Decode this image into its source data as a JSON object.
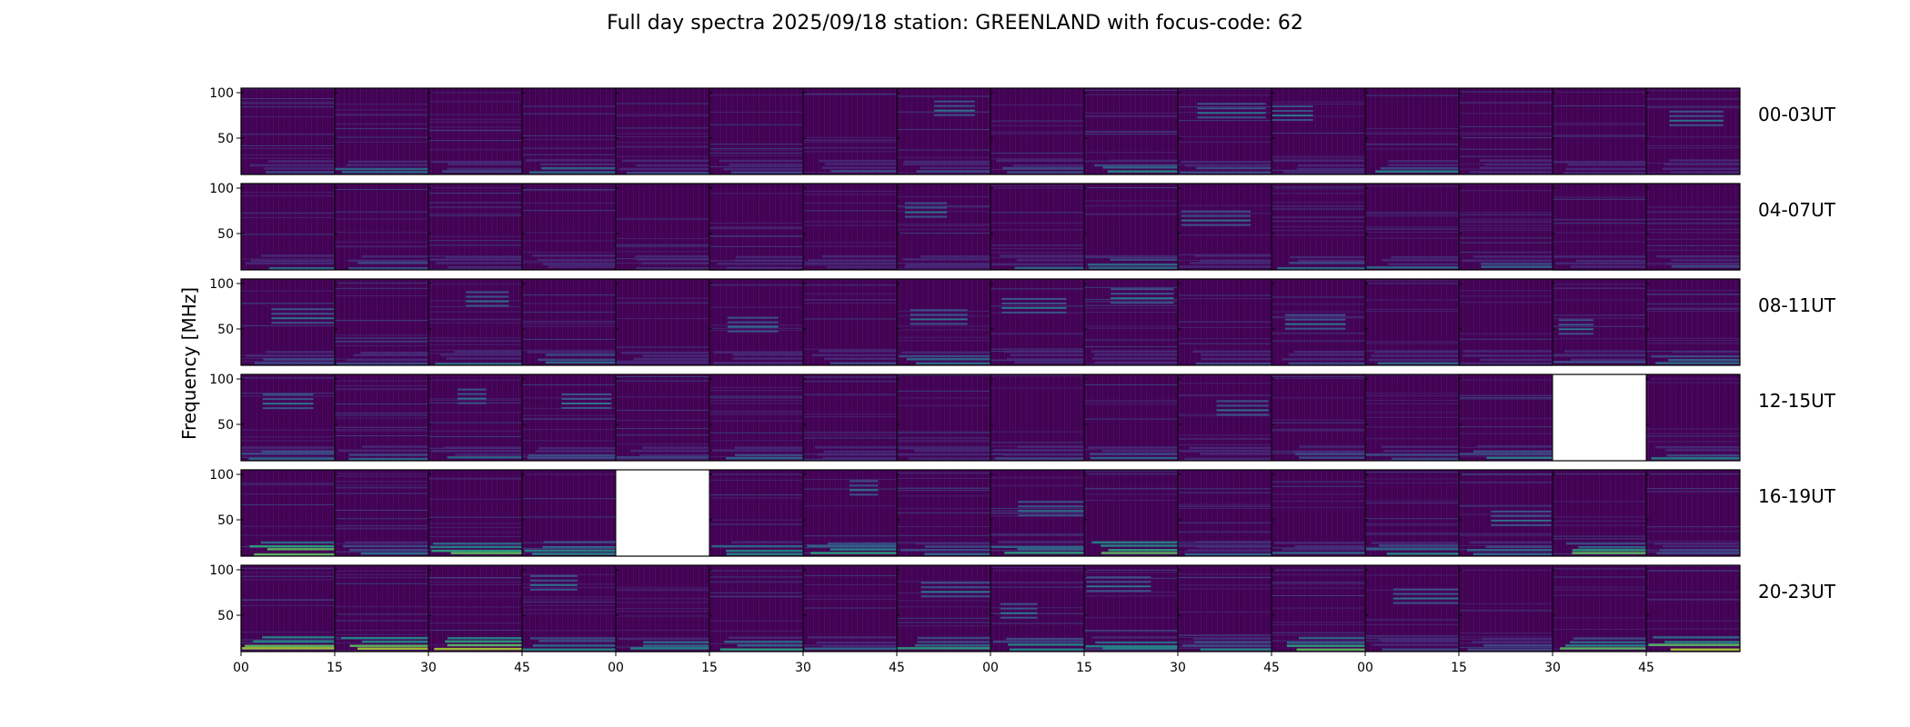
{
  "chart_data": {
    "type": "heatmap",
    "title": "Full day spectra 2025/09/18 station: GREENLAND with focus-code: 62",
    "ylabel": "Frequency [MHz]",
    "xlabel": "",
    "ylim": [
      10,
      105
    ],
    "y_ticks": [
      50,
      100
    ],
    "x_ticks": [
      "00",
      "15",
      "30",
      "45",
      "00",
      "15",
      "30",
      "45",
      "00",
      "15",
      "30",
      "45",
      "00",
      "15",
      "30",
      "45"
    ],
    "rows": [
      {
        "label": "00-03UT",
        "missing_panels": []
      },
      {
        "label": "04-07UT",
        "missing_panels": []
      },
      {
        "label": "08-11UT",
        "missing_panels": []
      },
      {
        "label": "12-15UT",
        "missing_panels": [
          14
        ]
      },
      {
        "label": "16-19UT",
        "missing_panels": [
          4
        ]
      },
      {
        "label": "20-23UT",
        "missing_panels": []
      }
    ],
    "panels_per_row": 16,
    "panel_minutes": 15,
    "colormap": [
      "#440154",
      "#472d7b",
      "#3b528b",
      "#2c728e",
      "#21918c",
      "#28ae80",
      "#5ec962",
      "#addc30",
      "#fde725"
    ]
  }
}
